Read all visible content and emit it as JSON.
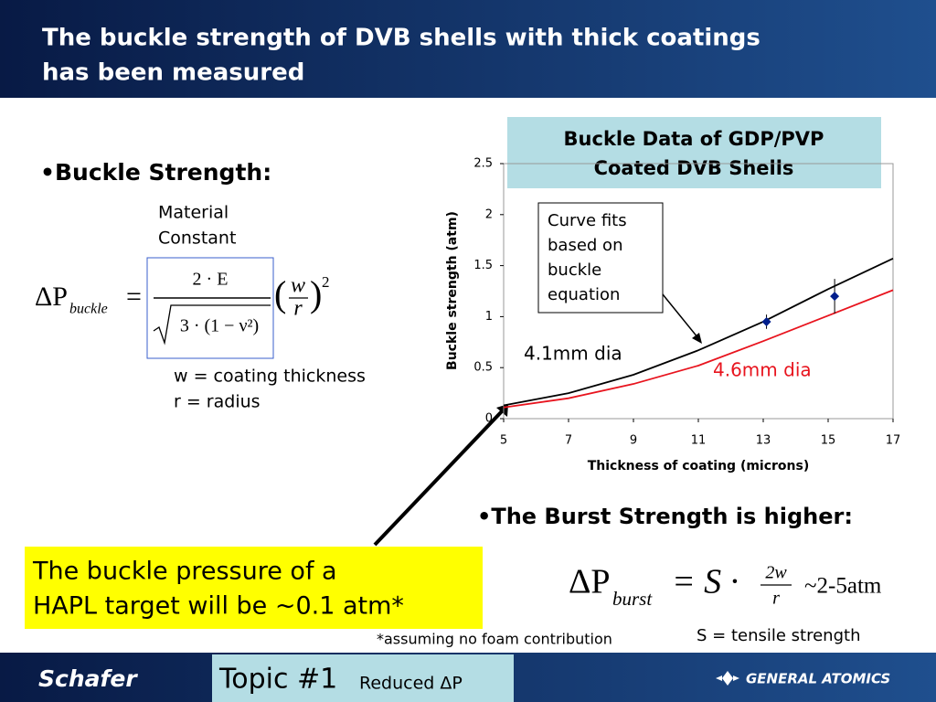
{
  "header": {
    "title_lines": [
      "The buckle strength of DVB shells with thick coatings",
      "has been measured"
    ]
  },
  "left": {
    "bullet": "•Buckle Strength:",
    "material_label_lines": [
      "Material",
      "Constant"
    ],
    "equation": {
      "lhs": "ΔP",
      "lhs_sub": "buckle",
      "equals": "=",
      "numerator": "2 · E",
      "denominator": "3 · (1 − ν²)",
      "ratio_top": "w",
      "ratio_bottom": "r",
      "ratio_power": "2"
    },
    "definitions": [
      "w = coating thickness",
      "r = radius"
    ]
  },
  "callout": {
    "lines": [
      "The buckle pressure of a",
      "HAPL target will be ~0.1 atm*"
    ]
  },
  "footnote": "*assuming no foam contribution",
  "curve_note": {
    "lines": [
      "Curve fits",
      "based on",
      "buckle",
      "equation"
    ]
  },
  "burst": {
    "bullet": "•The Burst Strength is higher:",
    "equation": {
      "lhs": "ΔP",
      "lhs_sub": "burst",
      "middle": "= S ·",
      "numerator": "2w",
      "denominator": "r",
      "result": "~2-5atm"
    },
    "definition": "S = tensile strength"
  },
  "footer": {
    "left_logo": "Schafer",
    "topic": "Topic #1",
    "topic_sub": "Reduced ΔP",
    "right_logo": "GENERAL ATOMICS"
  },
  "chart_data": {
    "type": "line",
    "title_lines": [
      "Buckle Data of GDP/PVP",
      "Coated DVB Shells"
    ],
    "x_label": "Thickness of coating (microns)",
    "y_label": "Buckle strength (atm)",
    "x": [
      5,
      7,
      9,
      11,
      13,
      15,
      17
    ],
    "series": [
      {
        "name": "4.1mm dia",
        "color": "#000000",
        "values": [
          0.13,
          0.25,
          0.43,
          0.67,
          0.95,
          1.27,
          1.57
        ]
      },
      {
        "name": "4.6mm dia",
        "color": "#e8141e",
        "values": [
          0.11,
          0.2,
          0.34,
          0.52,
          0.76,
          1.01,
          1.26
        ]
      }
    ],
    "points": {
      "x": [
        13.1,
        15.2
      ],
      "values": [
        0.95,
        1.2
      ],
      "errors": [
        0.07,
        0.17
      ],
      "color": "#001e8c"
    },
    "xlim": [
      5,
      17
    ],
    "xticks": [
      5,
      7,
      9,
      11,
      13,
      15,
      17
    ],
    "ylim": [
      0,
      2.5
    ],
    "yticks": [
      0,
      0.5,
      1,
      1.5,
      2,
      2.5
    ]
  }
}
